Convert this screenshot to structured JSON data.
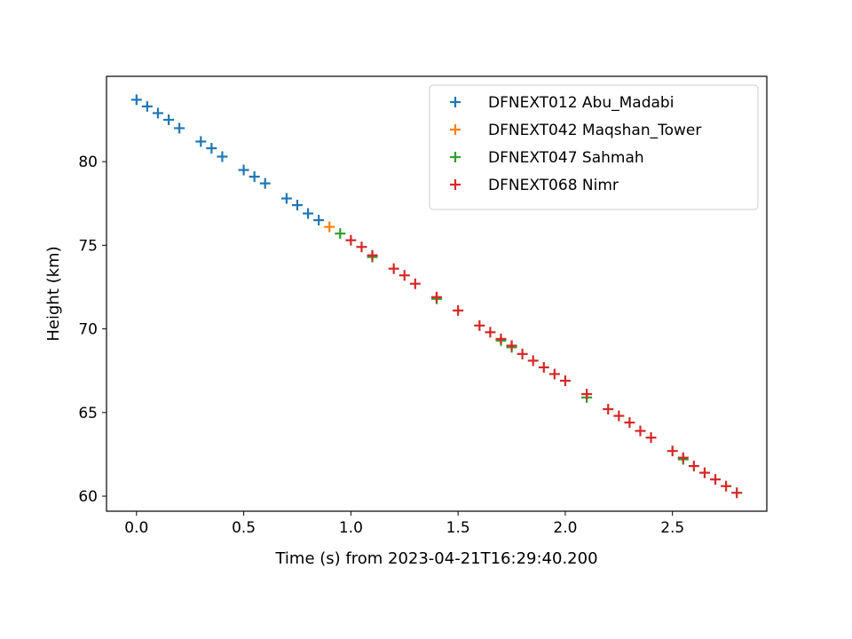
{
  "chart_data": {
    "type": "scatter",
    "title": "",
    "xlabel": "Time (s) from 2023-04-21T16:29:40.200",
    "ylabel": "Height (km)",
    "xlim": [
      -0.14,
      2.94
    ],
    "ylim": [
      59.1,
      85.1
    ],
    "xticks": [
      0.0,
      0.5,
      1.0,
      1.5,
      2.0,
      2.5
    ],
    "xtick_labels": [
      "0.0",
      "0.5",
      "1.0",
      "1.5",
      "2.0",
      "2.5"
    ],
    "yticks": [
      60,
      65,
      70,
      75,
      80
    ],
    "ytick_labels": [
      "60",
      "65",
      "70",
      "75",
      "80"
    ],
    "grid": false,
    "legend_position": "top-right",
    "marker": "+",
    "series": [
      {
        "name": "DFNEXT012 Abu_Madabi",
        "color": "#1f77b4",
        "x": [
          0.0,
          0.05,
          0.1,
          0.15,
          0.2,
          0.3,
          0.35,
          0.4,
          0.5,
          0.55,
          0.6,
          0.7,
          0.75,
          0.8,
          0.85
        ],
        "y": [
          83.7,
          83.3,
          82.9,
          82.5,
          82.0,
          81.2,
          80.8,
          80.3,
          79.5,
          79.1,
          78.7,
          77.8,
          77.4,
          76.9,
          76.5
        ]
      },
      {
        "name": "DFNEXT042 Maqshan_Tower",
        "color": "#ff7f0e",
        "x": [
          0.9,
          1.1,
          1.4
        ],
        "y": [
          76.1,
          74.3,
          71.8
        ]
      },
      {
        "name": "DFNEXT047 Sahmah",
        "color": "#2ca02c",
        "x": [
          0.95,
          1.1,
          1.4,
          1.7,
          1.75,
          2.1,
          2.55
        ],
        "y": [
          75.7,
          74.3,
          71.8,
          69.3,
          68.9,
          65.9,
          62.2
        ]
      },
      {
        "name": "DFNEXT068 Nimr",
        "color": "#d62728",
        "x": [
          1.0,
          1.05,
          1.1,
          1.2,
          1.25,
          1.3,
          1.4,
          1.5,
          1.6,
          1.65,
          1.7,
          1.75,
          1.8,
          1.85,
          1.9,
          1.95,
          2.0,
          2.1,
          2.2,
          2.25,
          2.3,
          2.35,
          2.4,
          2.5,
          2.55,
          2.6,
          2.65,
          2.7,
          2.75,
          2.8
        ],
        "y": [
          75.3,
          74.9,
          74.4,
          73.6,
          73.2,
          72.7,
          71.9,
          71.1,
          70.2,
          69.8,
          69.4,
          69.0,
          68.5,
          68.1,
          67.7,
          67.3,
          66.9,
          66.1,
          65.2,
          64.8,
          64.4,
          63.9,
          63.5,
          62.7,
          62.3,
          61.8,
          61.4,
          61.0,
          60.6,
          60.2
        ]
      }
    ]
  }
}
